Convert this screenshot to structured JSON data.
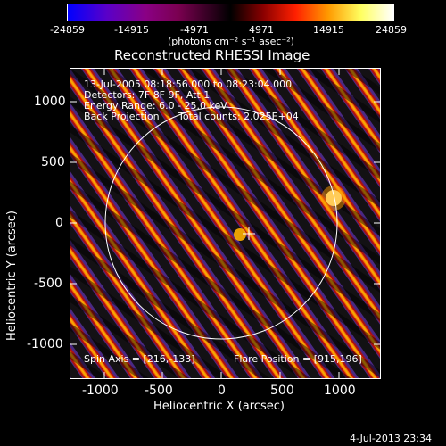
{
  "colorbar": {
    "ticks": [
      "-24859",
      "-14915",
      "-4971",
      "4971",
      "14915",
      "24859"
    ],
    "units": "(photons cm⁻² s⁻¹ asec⁻²)"
  },
  "title": "Reconstructed RHESSI Image",
  "overlay": {
    "line1": "13-Jul-2005 08:18:56.000 to 08:23:04.000",
    "line2": "Detectors: 7F 8F 9F, Att 1",
    "line3": "Energy Range: 6.0 - 25.0 keV",
    "line4_left": "Back Projection",
    "line4_right": "Total counts: 2.025E+04",
    "spin_axis": "Spin Axis = [216,-133]",
    "flare_position": "Flare Position = [915,196]"
  },
  "axes": {
    "xlabel": "Heliocentric X (arcsec)",
    "ylabel": "Heliocentric Y (arcsec)",
    "xticks": [
      "-1000",
      "-500",
      "0",
      "500",
      "1000"
    ],
    "yticks": [
      "1000",
      "500",
      "0",
      "-500",
      "-1000"
    ]
  },
  "footer_date": "4-Jul-2013 23:34",
  "colors": {
    "accent": "#ffffff",
    "background": "#000000"
  }
}
